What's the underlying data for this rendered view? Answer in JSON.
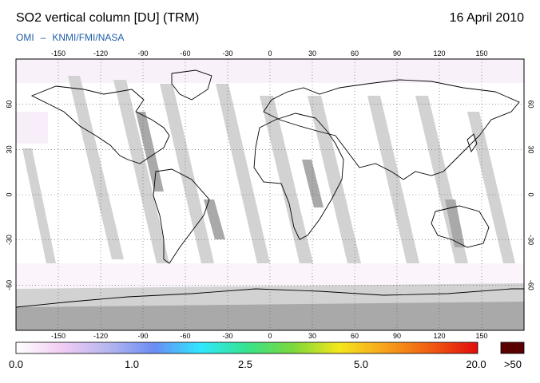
{
  "header": {
    "title": "SO2 vertical column [DU] (TRM)",
    "date": "16 April 2010",
    "credit_left": "OMI",
    "credit_dash": "–",
    "credit_right": "KNMI/FMI/NASA"
  },
  "map": {
    "projection": "equirectangular",
    "lon_range": [
      -180,
      180
    ],
    "lat_range": [
      -90,
      90
    ],
    "lon_ticks": [
      "-150",
      "-120",
      "-90",
      "-60",
      "-30",
      "0",
      "30",
      "60",
      "90",
      "120",
      "150"
    ],
    "lat_ticks": [
      "60",
      "30",
      "0",
      "-30",
      "-60"
    ],
    "background_color": "#ffffff",
    "no_data_color": "#d2d2d2",
    "coastline_color": "#000000",
    "grid": "dotted"
  },
  "colorbar": {
    "labels": [
      "0.0",
      "1.0",
      "2.5",
      "5.0",
      "20.0"
    ],
    "over_label": ">50",
    "over_color": "#5a0000",
    "gradient": [
      "#ffffff",
      "#f1ccf3",
      "#b6b6f0",
      "#6a8cf5",
      "#2fe8ff",
      "#36e38c",
      "#7bd83a",
      "#f5e71c",
      "#f6a21c",
      "#f05a10",
      "#e10c0c"
    ]
  }
}
